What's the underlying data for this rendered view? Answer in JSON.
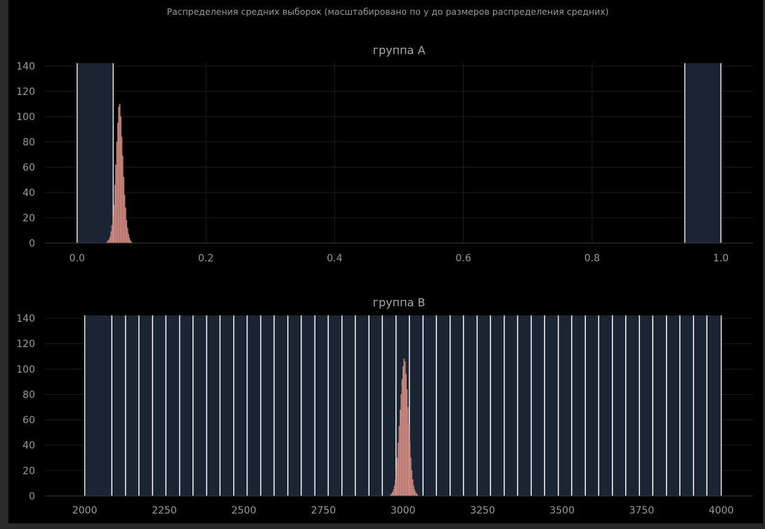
{
  "figure": {
    "title": "Распределения средних выборок (масштабировано по y до размеров распределения средних)"
  },
  "colors": {
    "background": "#000000",
    "outer": "#2a2a2a",
    "grid": "#1c1c1c",
    "span_fill": "#1a2433",
    "span_line": "#ffffff",
    "hist_fill": "#c47a72",
    "hist_edge": "#e0a39b",
    "text": "#9a9a9a"
  },
  "chart_data": [
    {
      "type": "bar",
      "title": "группа A",
      "xlim": [
        -0.05,
        1.05
      ],
      "ylim": [
        0,
        150
      ],
      "xticks": [
        0.0,
        0.2,
        0.4,
        0.6,
        0.8,
        1.0
      ],
      "xtick_labels": [
        "0.0",
        "0.2",
        "0.4",
        "0.6",
        "0.8",
        "1.0"
      ],
      "yticks": [
        0,
        20,
        40,
        60,
        80,
        100,
        120,
        140
      ],
      "ytick_labels": [
        "0",
        "20",
        "40",
        "60",
        "80",
        "100",
        "120",
        "140"
      ],
      "grid": true,
      "spans": [
        [
          0.0,
          0.056
        ],
        [
          0.944,
          1.0
        ]
      ],
      "histogram": {
        "bin_start": 0.046,
        "bin_width": 0.0015,
        "counts": [
          1,
          2,
          3,
          5,
          9,
          14,
          22,
          30,
          46,
          62,
          80,
          95,
          108,
          110,
          100,
          84,
          69,
          52,
          38,
          28,
          18,
          12,
          7,
          4,
          2,
          1
        ]
      }
    },
    {
      "type": "bar",
      "title": "группа B",
      "xlim": [
        1875,
        4100
      ],
      "ylim": [
        0,
        150
      ],
      "xticks": [
        2000,
        2250,
        2500,
        2750,
        3000,
        3250,
        3500,
        3750,
        4000
      ],
      "xtick_labels": [
        "2000",
        "2250",
        "2500",
        "2750",
        "3000",
        "3250",
        "3500",
        "3750",
        "4000"
      ],
      "yticks": [
        0,
        20,
        40,
        60,
        80,
        100,
        120,
        140
      ],
      "ytick_labels": [
        "0",
        "20",
        "40",
        "60",
        "80",
        "100",
        "120",
        "140"
      ],
      "grid": true,
      "span_edges": [
        2000,
        2085,
        2128,
        2170,
        2213,
        2255,
        2298,
        2340,
        2383,
        2425,
        2468,
        2510,
        2553,
        2595,
        2638,
        2680,
        2723,
        2765,
        2808,
        2850,
        2893,
        2935,
        2978,
        3020,
        3063,
        3105,
        3148,
        3190,
        3233,
        3275,
        3318,
        3360,
        3403,
        3445,
        3488,
        3530,
        3573,
        3615,
        3658,
        3700,
        3743,
        3785,
        3828,
        3870,
        3913,
        3955,
        4000
      ],
      "histogram": {
        "bin_start": 2960,
        "bin_width": 3,
        "counts": [
          1,
          2,
          3,
          5,
          8,
          13,
          20,
          30,
          42,
          55,
          68,
          80,
          92,
          102,
          108,
          106,
          96,
          84,
          70,
          56,
          42,
          30,
          20,
          13,
          8,
          5,
          3,
          2,
          1
        ]
      }
    }
  ]
}
